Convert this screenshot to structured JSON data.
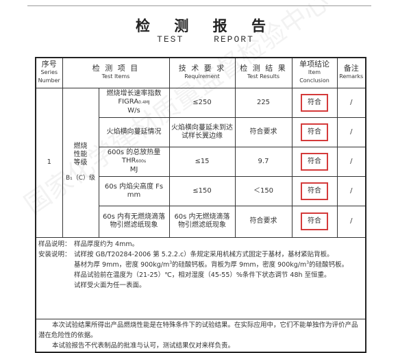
{
  "header": {
    "title": "检 测 报 告",
    "subtitle": "TEST REPORT"
  },
  "watermark": "国家化学建材质量监督检验中心",
  "table": {
    "columns": [
      {
        "zh": "序号",
        "en": "Series Number"
      },
      {
        "zh": "检 测 项 目",
        "en": "Test Items"
      },
      {
        "zh": "技 术 要 求",
        "en": "Requirement"
      },
      {
        "zh": "检 测 结 果",
        "en": "Test Results"
      },
      {
        "zh": "单项结论",
        "en": "Item Conclusion"
      },
      {
        "zh": "备注",
        "en": "Remarks"
      }
    ],
    "series": "1",
    "category": "燃烧性能等级",
    "grade": "B₁（C）级",
    "rows": [
      {
        "item": "燃烧增长速率指数",
        "item2": "FIGRA",
        "item_sub": "0.4MJ",
        "item3": "W/s",
        "req": "≤250",
        "result": "225",
        "conclusion": "符合",
        "remark": "/"
      },
      {
        "item": "火焰横向蔓延情况",
        "req": "火焰横向蔓延未到达试样长翼边缘",
        "result": "符合要求",
        "conclusion": "符合",
        "remark": "/"
      },
      {
        "item": "600s 的总放热量",
        "item2": "THR",
        "item_sub": "600s",
        "item3": "MJ",
        "req": "≤15",
        "result": "9.7",
        "conclusion": "符合",
        "remark": "/"
      },
      {
        "item": "60s 内焰尖高度 Fs",
        "item3": "mm",
        "req": "≤150",
        "result": "＜150",
        "conclusion": "符合",
        "remark": "/"
      },
      {
        "item": "60s 内有无燃烧滴落物引燃滤纸现象",
        "req": "60s 内无燃烧滴落物引燃滤纸现象",
        "result": "符合要求",
        "conclusion": "符合",
        "remark": "/"
      }
    ]
  },
  "notes": {
    "sample_label": "样品说明：",
    "sample_text": "样品厚度约为 4mm。",
    "install_label": "安装说明：",
    "install_lines": [
      "试样按 GB/T20284-2006 第 5.2.2.c）条规定采用机械方式固定于基材，基材紧贴背板。",
      "基材为厚 9mm，密度 900kg/m",
      "的硅酸钙板。背板为厚 9mm，密度 900kg/m",
      "的硅酸钙板。",
      "样品试验前在温度为（21-25）℃，相对湿度（45-55）%条件下状态调节 48h 至恒重。",
      "试样受火面为任一表面。"
    ],
    "sup": "3"
  },
  "disclaimer": [
    "本次试验结果所得出产品燃烧性能是在特殊条件下的试验结果。在实际应用中，它们不能单独作为评价产品潜在危险性的依据。",
    "本试验报告不代表制品的批准与认可，测试结果仅对来样负责。"
  ]
}
